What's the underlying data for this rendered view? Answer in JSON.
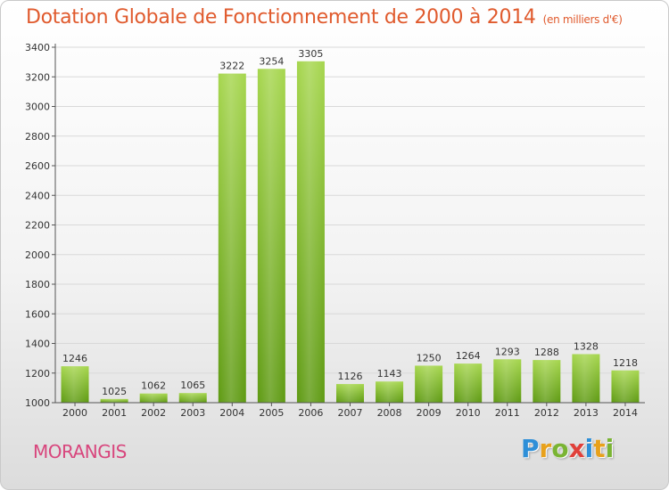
{
  "header": {
    "title": "Dotation Globale de Fonctionnement de 2000 à 2014",
    "subtitle": "(en milliers d'€)"
  },
  "footer": {
    "city": "MORANGIS",
    "brand": {
      "letters": [
        "P",
        "r",
        "o",
        "x",
        "i",
        "t",
        "i"
      ],
      "colors": [
        "#2e8fd8",
        "#e8a11b",
        "#7ab433",
        "#e0403a",
        "#2e8fd8",
        "#e8a11b",
        "#7ab433"
      ]
    }
  },
  "colors": {
    "bar_light": "#a6d64e",
    "bar_dark": "#5e9a12",
    "grid": "#d9d9d9"
  },
  "chart_data": {
    "type": "bar",
    "categories": [
      "2000",
      "2001",
      "2002",
      "2003",
      "2004",
      "2005",
      "2006",
      "2007",
      "2008",
      "2009",
      "2010",
      "2011",
      "2012",
      "2013",
      "2014"
    ],
    "values": [
      1246,
      1025,
      1062,
      1065,
      3222,
      3254,
      3305,
      1126,
      1143,
      1250,
      1264,
      1293,
      1288,
      1328,
      1218
    ],
    "yticks": [
      1000,
      1200,
      1400,
      1600,
      1800,
      2000,
      2200,
      2400,
      2600,
      2800,
      3000,
      3200,
      3400
    ],
    "ylim": [
      1000,
      3400
    ],
    "xlabel": "",
    "ylabel": "",
    "grid": true,
    "legend": "none"
  }
}
